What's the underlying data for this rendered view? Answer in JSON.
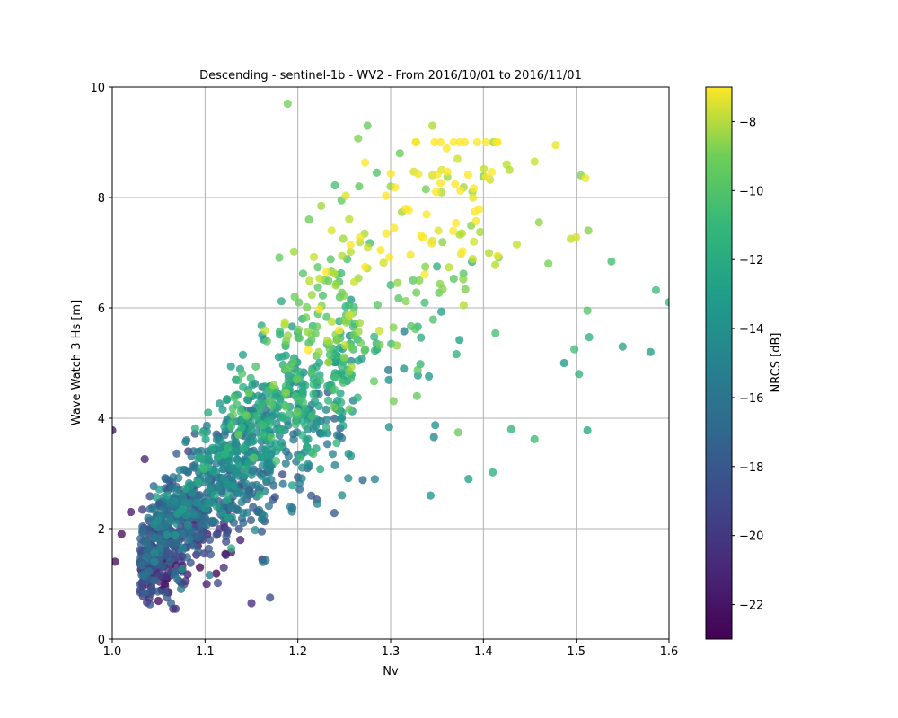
{
  "chart_data": {
    "type": "scatter",
    "title": "Descending - sentinel-1b - WV2 - From 2016/10/01 to 2016/11/01",
    "xlabel": "Nv",
    "ylabel": "Wave Watch 3 Hs [m]",
    "xlim": [
      1.0,
      1.6
    ],
    "ylim": [
      0,
      10
    ],
    "xticks": [
      1.0,
      1.1,
      1.2,
      1.3,
      1.4,
      1.5,
      1.6
    ],
    "xtick_labels": [
      "1.0",
      "1.1",
      "1.2",
      "1.3",
      "1.4",
      "1.5",
      "1.6"
    ],
    "yticks": [
      0,
      2,
      4,
      6,
      8,
      10
    ],
    "ytick_labels": [
      "0",
      "2",
      "4",
      "6",
      "8",
      "10"
    ],
    "grid": true,
    "colormap": "viridis",
    "colorbar": {
      "label": "NRCS [dB]",
      "min": -23,
      "max": -7,
      "ticks": [
        -22,
        -20,
        -18,
        -16,
        -14,
        -12,
        -10,
        -8
      ],
      "tick_labels": [
        "−22",
        "−20",
        "−18",
        "−16",
        "−14",
        "−12",
        "−10",
        "−8"
      ]
    },
    "point_count": 1400,
    "points": [
      [
        1.0,
        3.78,
        -22.0
      ],
      [
        1.189,
        9.7,
        -10.5
      ],
      [
        1.275,
        9.3,
        -10.8
      ],
      [
        1.345,
        9.3,
        -9.0
      ],
      [
        1.265,
        9.07,
        -10.2
      ],
      [
        1.478,
        8.95,
        -7.5
      ],
      [
        1.372,
        8.7,
        -8.2
      ],
      [
        1.31,
        8.8,
        -10.8
      ],
      [
        1.505,
        8.4,
        -10.2
      ],
      [
        1.51,
        8.35,
        -7.4
      ],
      [
        1.425,
        8.6,
        -8.6
      ],
      [
        1.428,
        8.5,
        -8.9
      ],
      [
        1.455,
        8.65,
        -8.3
      ],
      [
        1.345,
        8.4,
        -8.0
      ],
      [
        1.355,
        8.5,
        -7.8
      ],
      [
        1.338,
        8.15,
        -10.5
      ],
      [
        1.3,
        8.2,
        -9.8
      ],
      [
        1.285,
        8.45,
        -11.5
      ],
      [
        1.4,
        8.38,
        -10.2
      ],
      [
        1.24,
        8.22,
        -11.8
      ],
      [
        1.212,
        7.6,
        -10.6
      ],
      [
        1.247,
        7.95,
        -11.0
      ],
      [
        1.266,
        8.2,
        -11.1
      ],
      [
        1.494,
        7.25,
        -8.5
      ],
      [
        1.513,
        7.4,
        -10.0
      ],
      [
        1.47,
        6.8,
        -10.4
      ],
      [
        1.5,
        7.28,
        -8.0
      ],
      [
        1.436,
        7.15,
        -8.4
      ],
      [
        1.46,
        7.55,
        -9.8
      ],
      [
        1.538,
        6.84,
        -11.9
      ],
      [
        1.586,
        6.32,
        -12.1
      ],
      [
        1.6,
        6.1,
        -12.2
      ],
      [
        1.55,
        5.3,
        -13.6
      ],
      [
        1.58,
        5.2,
        -14.2
      ],
      [
        1.514,
        5.47,
        -12.8
      ],
      [
        1.512,
        5.95,
        -11.3
      ],
      [
        1.498,
        5.25,
        -11.9
      ],
      [
        1.487,
        5.0,
        -14.4
      ],
      [
        1.503,
        4.8,
        -12.6
      ],
      [
        1.512,
        3.78,
        -13.4
      ],
      [
        1.455,
        3.62,
        -12.1
      ],
      [
        1.43,
        3.8,
        -12.6
      ],
      [
        1.41,
        3.02,
        -12.9
      ],
      [
        1.384,
        2.9,
        -13.8
      ],
      [
        1.343,
        2.6,
        -14.6
      ],
      [
        1.18,
        6.91,
        -10.8
      ],
      [
        1.186,
        5.74,
        -8.6
      ],
      [
        1.17,
        0.75,
        -19.5
      ],
      [
        1.15,
        0.65,
        -21.0
      ],
      [
        1.08,
        3.6,
        -16.5
      ],
      [
        1.082,
        3.4,
        -20.0
      ],
      [
        1.035,
        3.26,
        -21.5
      ],
      [
        1.003,
        1.4,
        -22.5
      ],
      [
        1.01,
        1.9,
        -22.4
      ],
      [
        1.02,
        2.3,
        -21.8
      ]
    ]
  }
}
